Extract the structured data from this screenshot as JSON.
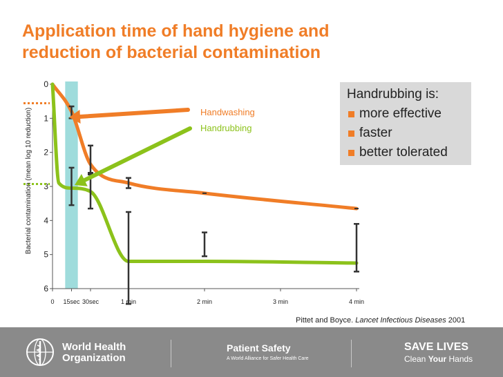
{
  "chart_data": {
    "type": "line",
    "title": [
      "Application time of hand hygiene and",
      "reduction of bacterial contamination"
    ],
    "ylabel": "Bacterial contamination (mean log 10 reduction)",
    "xlabel": "",
    "y_ticks": [
      "0",
      "1",
      "2",
      "3",
      "4",
      "5",
      "6"
    ],
    "ylim": [
      0,
      6
    ],
    "y_inverted": true,
    "x_ticks": [
      {
        "value": 0,
        "label": "0"
      },
      {
        "value": 15,
        "label": "15sec"
      },
      {
        "value": 30,
        "label": "30sec"
      },
      {
        "value": 60,
        "label": "1 min"
      },
      {
        "value": 120,
        "label": "2 min"
      },
      {
        "value": 180,
        "label": "3 min"
      },
      {
        "value": 240,
        "label": "4 min"
      }
    ],
    "highlight_band": [
      10,
      20
    ],
    "series": [
      {
        "name": "Handwashing",
        "color": "#f07d27",
        "x": [
          0,
          15,
          30,
          60,
          120,
          240
        ],
        "y": [
          0,
          0.8,
          2.35,
          2.9,
          3.2,
          3.65
        ],
        "error_low": [
          null,
          0.65,
          1.8,
          2.75,
          null,
          null
        ],
        "error_high": [
          null,
          1.0,
          2.65,
          3.05,
          null,
          null
        ]
      },
      {
        "name": "Handrubbing",
        "color": "#8cc21b",
        "x": [
          0,
          5,
          15,
          30,
          60,
          120,
          240
        ],
        "y": [
          0,
          2.9,
          3.05,
          3.15,
          5.2,
          5.2,
          5.25
        ],
        "error_low": [
          null,
          null,
          2.45,
          2.6,
          3.75,
          4.35,
          4.1
        ],
        "error_high": [
          null,
          null,
          3.55,
          3.65,
          6.45,
          5.05,
          5.5
        ]
      }
    ],
    "legend_position": "center-top"
  },
  "summary": {
    "heading": "Handrubbing is:",
    "items": [
      "more effective",
      "faster",
      "better tolerated"
    ]
  },
  "citation": {
    "authors": "Pittet and Boyce.",
    "journal": "Lancet Infectious Diseases",
    "year": "2001"
  },
  "footer": {
    "org_line1": "World Health",
    "org_line2": "Organization",
    "patient_safety": "Patient Safety",
    "patient_safety_sub": "A World Alliance for Safer Health Care",
    "save_lives": "SAVE LIVES",
    "clean_pre": "Clean ",
    "clean_your": "Your",
    "clean_post": " Hands"
  },
  "colors": {
    "accent": "#f07d27",
    "handrubbing": "#8cc21b",
    "band": "#9fdcdc",
    "footer": "#8a8a8a"
  }
}
